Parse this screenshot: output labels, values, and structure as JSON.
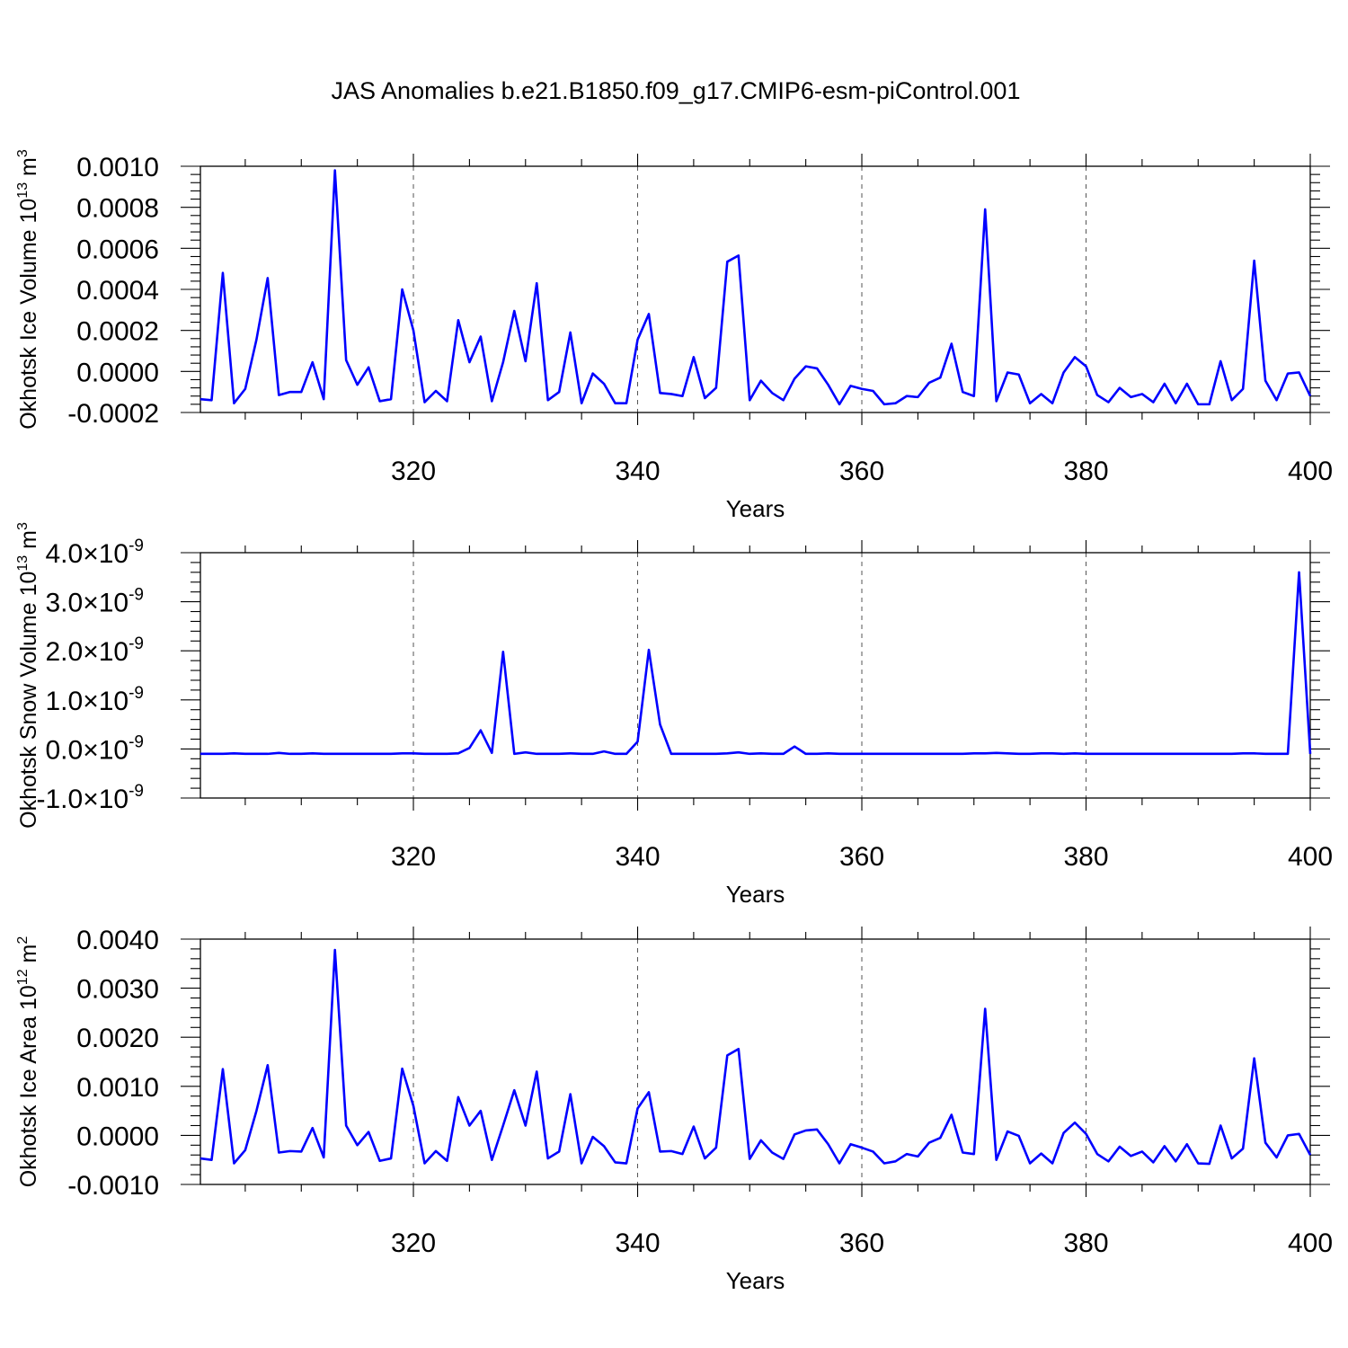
{
  "figure": {
    "title": "JAS Anomalies b.e21.B1850.f09_g17.CMIP6-esm-piControl.001"
  },
  "colors": {
    "series": "#0000ff",
    "axes": "#000000",
    "grid": "#555555"
  },
  "chart_data": [
    {
      "type": "line",
      "xlabel": "Years",
      "ylabel": "Okhotsk Ice Volume 10",
      "ylabel_exp": "13",
      "ylabel_unit": " m",
      "ylabel_unit_exp": "3",
      "xlim": [
        301,
        400
      ],
      "ylim": [
        -0.0002,
        0.001
      ],
      "xticks": [
        320,
        340,
        360,
        380,
        400
      ],
      "xtick_labels": [
        "320",
        "340",
        "360",
        "380",
        "400"
      ],
      "yticks": [
        0.001,
        0.0008,
        0.0006,
        0.0004,
        0.0002,
        0.0,
        -0.0002
      ],
      "ytick_labels": [
        "0.0010",
        "0.0008",
        "0.0006",
        "0.0004",
        "0.0002",
        "0.0000",
        "-0.0002"
      ],
      "grid": "vertical dashed at major x ticks",
      "x_start": 301,
      "series": [
        {
          "values": [
            -0.000135,
            -0.00014,
            0.00048,
            -0.000155,
            -8.5e-05,
            0.000155,
            0.000455,
            -0.000115,
            -0.0001,
            -0.0001,
            4.5e-05,
            -0.000135,
            0.00098,
            5.5e-05,
            -6.5e-05,
            2e-05,
            -0.000145,
            -0.000135,
            0.0004,
            0.0002,
            -0.00015,
            -9.5e-05,
            -0.000145,
            0.00025,
            4.5e-05,
            0.00017,
            -0.000145,
            4.5e-05,
            0.000295,
            5e-05,
            0.00043,
            -0.00014,
            -0.0001,
            0.00019,
            -0.000155,
            -1e-05,
            -6e-05,
            -0.000155,
            -0.000155,
            0.000155,
            0.00028,
            -0.000105,
            -0.00011,
            -0.00012,
            7e-05,
            -0.00013,
            -8e-05,
            0.000535,
            0.000565,
            -0.00014,
            -4.5e-05,
            -0.000105,
            -0.00014,
            -3.5e-05,
            2.5e-05,
            1.5e-05,
            -6.5e-05,
            -0.00016,
            -7e-05,
            -8.5e-05,
            -9.5e-05,
            -0.00016,
            -0.000155,
            -0.00012,
            -0.000125,
            -5.5e-05,
            -3e-05,
            0.000135,
            -0.0001,
            -0.00012,
            0.00079,
            -0.000145,
            -5e-06,
            -1.5e-05,
            -0.000155,
            -0.00011,
            -0.000155,
            -5e-06,
            7e-05,
            2.5e-05,
            -0.000115,
            -0.00015,
            -8e-05,
            -0.000125,
            -0.00011,
            -0.00015,
            -6e-05,
            -0.000155,
            -6e-05,
            -0.00016,
            -0.00016,
            5e-05,
            -0.00014,
            -8.5e-05,
            0.00054,
            -4.5e-05,
            -0.00014,
            -1e-05,
            -5e-06,
            -0.00012
          ]
        }
      ]
    },
    {
      "type": "line",
      "xlabel": "Years",
      "ylabel": "Okhotsk Snow Volume 10",
      "ylabel_exp": "13",
      "ylabel_unit": " m",
      "ylabel_unit_exp": "3",
      "xlim": [
        301,
        400
      ],
      "ylim": [
        -1e-09,
        4e-09
      ],
      "xticks": [
        320,
        340,
        360,
        380,
        400
      ],
      "xtick_labels": [
        "320",
        "340",
        "360",
        "380",
        "400"
      ],
      "yticks": [
        4e-09,
        3e-09,
        2e-09,
        1e-09,
        0.0,
        -1e-09
      ],
      "ytick_labels": [
        "4.0",
        "3.0",
        "2.0",
        "1.0",
        "0.0",
        "-1.0"
      ],
      "ytick_suffix": "×10",
      "ytick_exp": "-9",
      "grid": "vertical dashed at major x ticks",
      "x_start": 301,
      "series": [
        {
          "values": [
            -1e-10,
            -1e-10,
            -1e-10,
            -9e-11,
            -1e-10,
            -1e-10,
            -1e-10,
            -8e-11,
            -1e-10,
            -1e-10,
            -9e-11,
            -1e-10,
            -1e-10,
            -1e-10,
            -1e-10,
            -1e-10,
            -1e-10,
            -1e-10,
            -9e-11,
            -9e-11,
            -1e-10,
            -1e-10,
            -1e-10,
            -9e-11,
            2e-11,
            3.8e-10,
            -8e-11,
            1.98e-09,
            -1e-10,
            -7e-11,
            -1e-10,
            -1e-10,
            -1e-10,
            -9e-11,
            -1e-10,
            -1e-10,
            -5e-11,
            -1e-10,
            -1e-10,
            1.5e-10,
            2.02e-09,
            5e-10,
            -1e-10,
            -1e-10,
            -1e-10,
            -1e-10,
            -1e-10,
            -9e-11,
            -7e-11,
            -1e-10,
            -9e-11,
            -1e-10,
            -1e-10,
            5e-11,
            -1e-10,
            -1e-10,
            -9e-11,
            -1e-10,
            -1e-10,
            -1e-10,
            -1e-10,
            -1e-10,
            -1e-10,
            -1e-10,
            -1e-10,
            -1e-10,
            -1e-10,
            -1e-10,
            -1e-10,
            -9e-11,
            -9e-11,
            -8e-11,
            -9e-11,
            -1e-10,
            -1e-10,
            -9e-11,
            -9e-11,
            -1e-10,
            -9e-11,
            -1e-10,
            -1e-10,
            -1e-10,
            -1e-10,
            -1e-10,
            -1e-10,
            -1e-10,
            -1e-10,
            -1e-10,
            -1e-10,
            -1e-10,
            -1e-10,
            -1e-10,
            -1e-10,
            -9e-11,
            -9e-11,
            -1e-10,
            -1e-10,
            -1e-10,
            3.6e-09,
            -1e-10
          ]
        }
      ]
    },
    {
      "type": "line",
      "xlabel": "Years",
      "ylabel": "Okhotsk Ice Area 10",
      "ylabel_exp": "12",
      "ylabel_unit": " m",
      "ylabel_unit_exp": "2",
      "xlim": [
        301,
        400
      ],
      "ylim": [
        -0.001,
        0.004
      ],
      "xticks": [
        320,
        340,
        360,
        380,
        400
      ],
      "xtick_labels": [
        "320",
        "340",
        "360",
        "380",
        "400"
      ],
      "yticks": [
        0.004,
        0.003,
        0.002,
        0.001,
        0.0,
        -0.001
      ],
      "ytick_labels": [
        "0.0040",
        "0.0030",
        "0.0020",
        "0.0010",
        "0.0000",
        "-0.0010"
      ],
      "grid": "vertical dashed at major x ticks",
      "x_start": 301,
      "series": [
        {
          "values": [
            -0.00047,
            -0.0005,
            0.00135,
            -0.00057,
            -0.0003,
            0.0005,
            0.00143,
            -0.00035,
            -0.00032,
            -0.00033,
            0.00015,
            -0.00045,
            0.00378,
            0.0002,
            -0.0002,
            7e-05,
            -0.00052,
            -0.00047,
            0.00136,
            0.0006,
            -0.00057,
            -0.00032,
            -0.00052,
            0.00078,
            0.0002,
            0.0005,
            -0.0005,
            0.0002,
            0.00092,
            0.0002,
            0.0013,
            -0.00047,
            -0.00033,
            0.00084,
            -0.00057,
            -3e-05,
            -0.00022,
            -0.00055,
            -0.00057,
            0.00055,
            0.00088,
            -0.00033,
            -0.00032,
            -0.00038,
            0.00018,
            -0.00047,
            -0.00025,
            0.00163,
            0.00176,
            -0.00048,
            -0.0001,
            -0.00035,
            -0.00048,
            2e-05,
            0.0001,
            0.00012,
            -0.00018,
            -0.00057,
            -0.00018,
            -0.00025,
            -0.00033,
            -0.00057,
            -0.00053,
            -0.00038,
            -0.00043,
            -0.00015,
            -5e-05,
            0.00042,
            -0.00035,
            -0.00038,
            0.00258,
            -0.0005,
            8e-05,
            -1e-05,
            -0.00057,
            -0.00037,
            -0.00057,
            5e-05,
            0.00026,
            3e-05,
            -0.00038,
            -0.00053,
            -0.00023,
            -0.00042,
            -0.00033,
            -0.00055,
            -0.00022,
            -0.00053,
            -0.00018,
            -0.00057,
            -0.00058,
            0.0002,
            -0.00047,
            -0.00027,
            0.00157,
            -0.00015,
            -0.00045,
            0.0,
            3e-05,
            -0.0004
          ]
        }
      ]
    }
  ]
}
